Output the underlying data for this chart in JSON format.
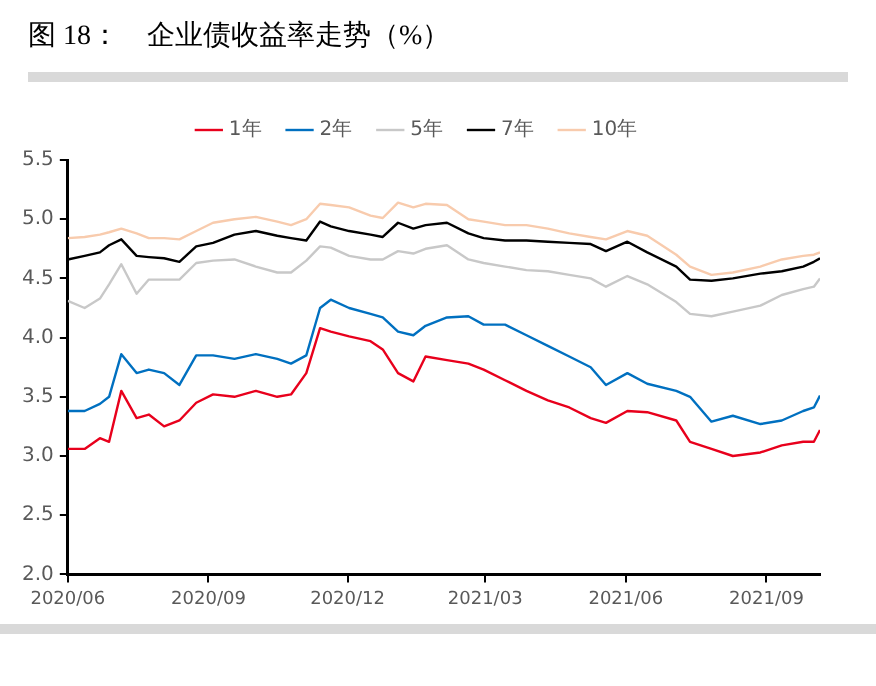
{
  "chart_data": {
    "type": "line",
    "title": "图 18：    企业债收益率走势（%）",
    "x": [
      "2020-06-01",
      "2020-06-12",
      "2020-06-22",
      "2020-06-28",
      "2020-07-06",
      "2020-07-16",
      "2020-07-24",
      "2020-08-03",
      "2020-08-13",
      "2020-08-24",
      "2020-09-04",
      "2020-09-18",
      "2020-10-02",
      "2020-10-16",
      "2020-10-25",
      "2020-11-04",
      "2020-11-13",
      "2020-11-20",
      "2020-12-02",
      "2020-12-16",
      "2020-12-24",
      "2021-01-03",
      "2021-01-13",
      "2021-01-21",
      "2021-02-04",
      "2021-02-18",
      "2021-02-28",
      "2021-03-14",
      "2021-03-28",
      "2021-04-11",
      "2021-04-25",
      "2021-05-09",
      "2021-05-19",
      "2021-06-02",
      "2021-06-15",
      "2021-07-04",
      "2021-07-13",
      "2021-07-27",
      "2021-08-10",
      "2021-08-28",
      "2021-09-11",
      "2021-09-25",
      "2021-10-02",
      "2021-10-06"
    ],
    "series": [
      {
        "name": "1年",
        "color": "#e8001c",
        "values": [
          3.06,
          3.06,
          3.15,
          3.12,
          3.55,
          3.32,
          3.35,
          3.25,
          3.3,
          3.45,
          3.52,
          3.5,
          3.55,
          3.5,
          3.52,
          3.7,
          4.08,
          4.05,
          4.01,
          3.97,
          3.9,
          3.7,
          3.63,
          3.84,
          3.81,
          3.78,
          3.73,
          3.64,
          3.55,
          3.47,
          3.41,
          3.32,
          3.28,
          3.38,
          3.37,
          3.3,
          3.12,
          3.06,
          3.0,
          3.03,
          3.09,
          3.12,
          3.12,
          3.22
        ]
      },
      {
        "name": "2年",
        "color": "#0070c0",
        "values": [
          3.38,
          3.38,
          3.44,
          3.5,
          3.86,
          3.7,
          3.73,
          3.7,
          3.6,
          3.85,
          3.85,
          3.82,
          3.86,
          3.82,
          3.78,
          3.85,
          4.25,
          4.32,
          4.25,
          4.2,
          4.17,
          4.05,
          4.02,
          4.1,
          4.17,
          4.18,
          4.11,
          4.11,
          4.02,
          3.93,
          3.84,
          3.75,
          3.6,
          3.7,
          3.61,
          3.55,
          3.5,
          3.29,
          3.34,
          3.27,
          3.3,
          3.38,
          3.41,
          3.51
        ]
      },
      {
        "name": "5年",
        "color": "#c8c8c8",
        "values": [
          4.31,
          4.25,
          4.33,
          4.45,
          4.62,
          4.37,
          4.49,
          4.49,
          4.49,
          4.63,
          4.65,
          4.66,
          4.6,
          4.55,
          4.55,
          4.65,
          4.77,
          4.76,
          4.69,
          4.66,
          4.66,
          4.73,
          4.71,
          4.75,
          4.78,
          4.66,
          4.63,
          4.6,
          4.57,
          4.56,
          4.53,
          4.5,
          4.43,
          4.52,
          4.45,
          4.3,
          4.2,
          4.18,
          4.22,
          4.27,
          4.36,
          4.41,
          4.43,
          4.5
        ]
      },
      {
        "name": "7年",
        "color": "#000000",
        "values": [
          4.66,
          4.69,
          4.72,
          4.78,
          4.83,
          4.69,
          4.68,
          4.67,
          4.64,
          4.77,
          4.8,
          4.87,
          4.9,
          4.86,
          4.84,
          4.82,
          4.98,
          4.94,
          4.9,
          4.87,
          4.85,
          4.97,
          4.92,
          4.95,
          4.97,
          4.88,
          4.84,
          4.82,
          4.82,
          4.81,
          4.8,
          4.79,
          4.73,
          4.81,
          4.72,
          4.6,
          4.49,
          4.48,
          4.5,
          4.54,
          4.56,
          4.6,
          4.64,
          4.67
        ]
      },
      {
        "name": "10年",
        "color": "#f8cbad",
        "values": [
          4.84,
          4.85,
          4.87,
          4.89,
          4.92,
          4.88,
          4.84,
          4.84,
          4.83,
          4.9,
          4.97,
          5.0,
          5.02,
          4.98,
          4.95,
          5.0,
          5.13,
          5.12,
          5.1,
          5.03,
          5.01,
          5.14,
          5.1,
          5.13,
          5.12,
          5.0,
          4.98,
          4.95,
          4.95,
          4.92,
          4.88,
          4.85,
          4.83,
          4.9,
          4.86,
          4.7,
          4.6,
          4.53,
          4.55,
          4.6,
          4.66,
          4.69,
          4.7,
          4.72
        ]
      }
    ],
    "xlim": [
      "2020-06-01",
      "2021-10-06"
    ],
    "xticks": [
      {
        "value": "2020-06-01",
        "label": "2020/06"
      },
      {
        "value": "2020-09-01",
        "label": "2020/09"
      },
      {
        "value": "2020-12-01",
        "label": "2020/12"
      },
      {
        "value": "2021-03-01",
        "label": "2021/03"
      },
      {
        "value": "2021-06-01",
        "label": "2021/06"
      },
      {
        "value": "2021-09-01",
        "label": "2021/09"
      }
    ],
    "ylim": [
      2.0,
      5.5
    ],
    "yticks": [
      {
        "value": 2.0,
        "label": "2.0"
      },
      {
        "value": 2.5,
        "label": "2.5"
      },
      {
        "value": 3.0,
        "label": "3.0"
      },
      {
        "value": 3.5,
        "label": "3.5"
      },
      {
        "value": 4.0,
        "label": "4.0"
      },
      {
        "value": 4.5,
        "label": "4.5"
      },
      {
        "value": 5.0,
        "label": "5.0"
      },
      {
        "value": 5.5,
        "label": "5.5"
      }
    ],
    "grid": false,
    "legend": "top",
    "marker": "none",
    "line_style": "solid"
  }
}
